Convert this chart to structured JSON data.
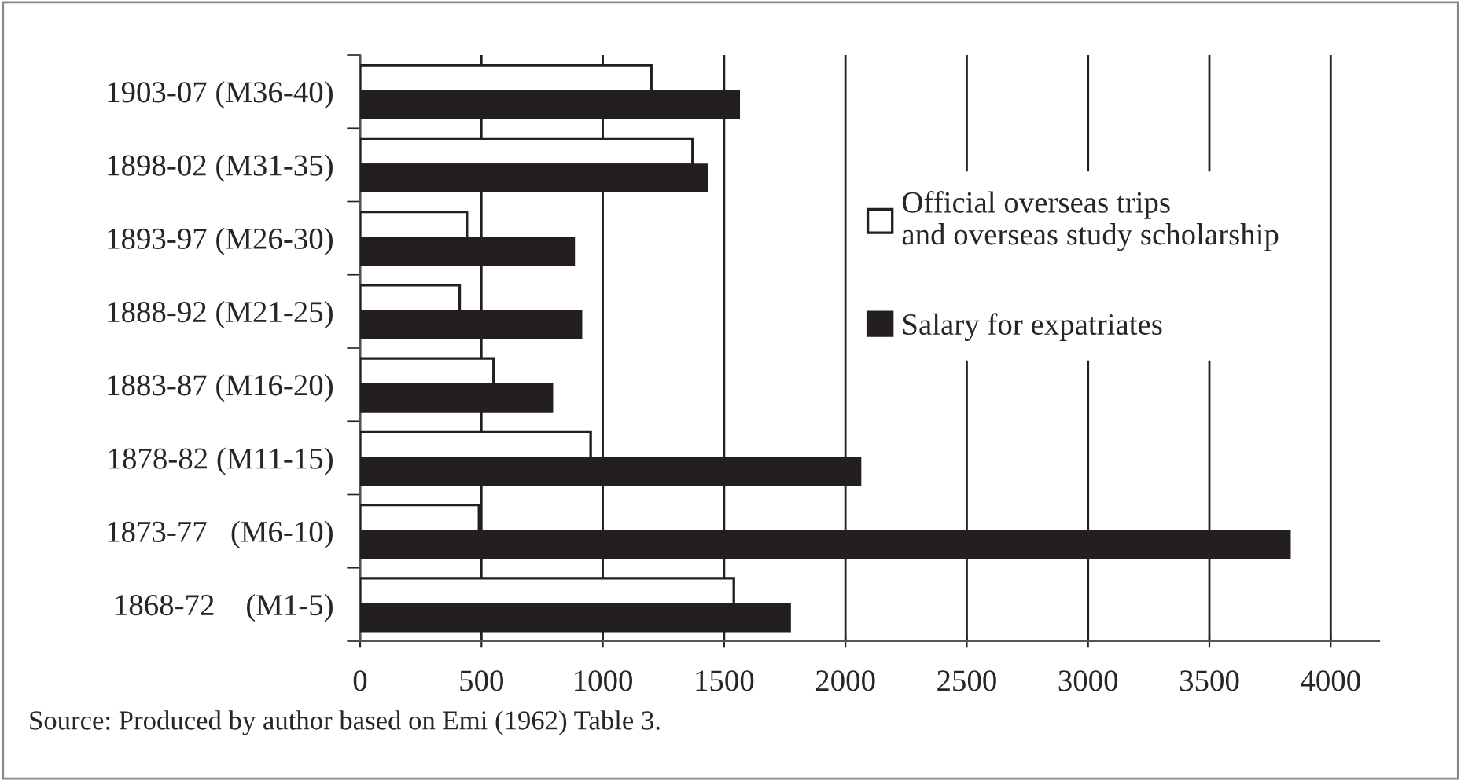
{
  "chart_data": {
    "type": "bar",
    "orientation": "horizontal",
    "categories": [
      "1903-07 (M36-40)",
      "1898-02 (M31-35)",
      "1893-97 (M26-30)",
      "1888-92 (M21-25)",
      "1883-87 (M16-20)",
      "1878-82 (M11-15)",
      "1873-77   (M6-10)",
      "1868-72    (M1-5)"
    ],
    "series": [
      {
        "name": "Official overseas trips and overseas study scholarship",
        "color": "#ffffff",
        "values": [
          1200,
          1370,
          440,
          410,
          550,
          950,
          490,
          1540
        ]
      },
      {
        "name": "Salary for expatriates",
        "color": "#231f20",
        "values": [
          1560,
          1430,
          880,
          910,
          790,
          2060,
          3830,
          1770
        ]
      }
    ],
    "xlim": [
      0,
      4200
    ],
    "xticks": [
      0,
      500,
      1000,
      1500,
      2000,
      2500,
      3000,
      3500,
      4000
    ],
    "grid": "x",
    "legend": "right",
    "annotations": [
      "Source: Produced by author based on Emi (1962) Table 3."
    ]
  }
}
